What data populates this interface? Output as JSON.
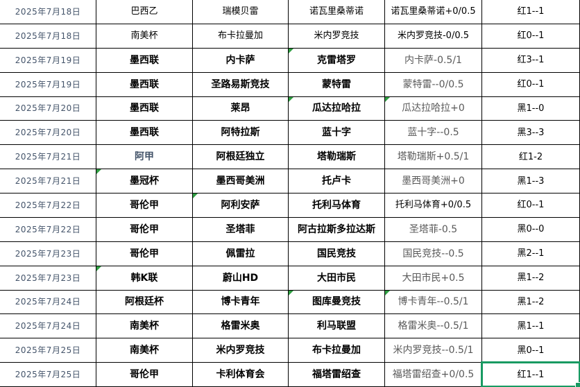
{
  "app": {
    "kind": "spreadsheet-match-record"
  },
  "colors": {
    "background": "#ffffff",
    "grid_line": "#000000",
    "date_text": "#44546A",
    "league_accent_text": "#44546A",
    "handicap_gray_text": "#595959",
    "error_triangle_green": "#2f9e41",
    "selection_border_green": "#189a62"
  },
  "table": {
    "columns": [
      "date",
      "league",
      "home",
      "away",
      "handicap",
      "result"
    ],
    "rows": [
      {
        "date": "2025年7月18日",
        "league": "巴西乙",
        "home": "瑞模贝雷",
        "away": "诺瓦里桑蒂诺",
        "handicap": "诺瓦里桑蒂诺+0/0.5",
        "result": "红1--1",
        "bold": false,
        "handicap_black": true,
        "triangles": [],
        "league_accent": false,
        "selected": ""
      },
      {
        "date": "2025年7月18日",
        "league": "南美杯",
        "home": "布卡拉曼加",
        "away": "米内罗竞技",
        "handicap": "米内罗竞技-0/0.5",
        "result": "红0--1",
        "bold": false,
        "handicap_black": true,
        "triangles": [],
        "league_accent": false,
        "selected": ""
      },
      {
        "date": "2025年7月19日",
        "league": "墨西联",
        "home": "内卡萨",
        "away": "克雷塔罗",
        "handicap": "内卡萨-0.5/1",
        "result": "红3--1",
        "bold": true,
        "handicap_black": false,
        "triangles": [
          "away"
        ],
        "league_accent": false,
        "selected": ""
      },
      {
        "date": "2025年7月19日",
        "league": "墨西联",
        "home": "圣路易斯竞技",
        "away": "蒙特雷",
        "handicap": "蒙特雷--0/0.5",
        "result": "红0--1",
        "bold": true,
        "handicap_black": false,
        "triangles": [],
        "league_accent": false,
        "selected": ""
      },
      {
        "date": "2025年7月20日",
        "league": "墨西联",
        "home": "莱昂",
        "away": "瓜达拉哈拉",
        "handicap": "瓜达拉哈拉+0",
        "result": "黑1--0",
        "bold": true,
        "handicap_black": false,
        "triangles": [
          "away",
          "handicap"
        ],
        "league_accent": false,
        "selected": ""
      },
      {
        "date": "2025年7月20日",
        "league": "墨西联",
        "home": "阿特拉斯",
        "away": "蓝十字",
        "handicap": "蓝十字--0.5",
        "result": "黑3--3",
        "bold": true,
        "handicap_black": false,
        "triangles": [],
        "league_accent": false,
        "selected": ""
      },
      {
        "date": "2025年7月21日",
        "league": "阿甲",
        "home": "阿根廷独立",
        "away": "塔勒瑞斯",
        "handicap": "塔勒瑞斯+0.5/1",
        "result": "红1-2",
        "bold": true,
        "handicap_black": false,
        "triangles": [],
        "league_accent": true,
        "selected": ""
      },
      {
        "date": "2025年7月21日",
        "league": "墨冠杯",
        "home": "墨西哥美洲",
        "away": "托卢卡",
        "handicap": "墨西哥美洲+0",
        "result": "黑1--3",
        "bold": true,
        "handicap_black": false,
        "triangles": [
          "league"
        ],
        "league_accent": false,
        "selected": ""
      },
      {
        "date": "2025年7月22日",
        "league": "哥伦甲",
        "home": "阿利安萨",
        "away": "托利马体育",
        "handicap": "托利马体育+0/0.5",
        "result": "红0--1",
        "bold": true,
        "handicap_black": true,
        "triangles": [
          "home"
        ],
        "league_accent": false,
        "selected": ""
      },
      {
        "date": "2025年7月22日",
        "league": "哥伦甲",
        "home": "圣塔菲",
        "away": "阿古拉斯多拉达斯",
        "handicap": "圣塔菲-0.5",
        "result": "黑0--0",
        "bold": true,
        "handicap_black": false,
        "triangles": [],
        "league_accent": false,
        "selected": ""
      },
      {
        "date": "2025年7月23日",
        "league": "哥伦甲",
        "home": "佩雷拉",
        "away": "国民竞技",
        "handicap": "国民竞技--0.5",
        "result": "黑2--1",
        "bold": true,
        "handicap_black": false,
        "triangles": [],
        "league_accent": false,
        "selected": ""
      },
      {
        "date": "2025年7月23日",
        "league": "韩K联",
        "home": "蔚山HD",
        "away": "大田市民",
        "handicap": "大田市民+0.5",
        "result": "黑1--2",
        "bold": true,
        "handicap_black": false,
        "triangles": [
          "league"
        ],
        "league_accent": false,
        "selected": ""
      },
      {
        "date": "2025年7月24日",
        "league": "阿根廷杯",
        "home": "博卡青年",
        "away": "图库曼竞技",
        "handicap": "博卡青年--0.5/1",
        "result": "黑1--2",
        "bold": true,
        "handicap_black": false,
        "triangles": [
          "away",
          "handicap"
        ],
        "league_accent": false,
        "selected": ""
      },
      {
        "date": "2025年7月24日",
        "league": "南美杯",
        "home": "格雷米奥",
        "away": "利马联盟",
        "handicap": "格雷米奥--0.5/1",
        "result": "黑1--1",
        "bold": true,
        "handicap_black": false,
        "triangles": [],
        "league_accent": false,
        "selected": ""
      },
      {
        "date": "2025年7月25日",
        "league": "南美杯",
        "home": "米内罗竞技",
        "away": "布卡拉曼加",
        "handicap": "米内罗竞技--0.5/1",
        "result": "黑0--1",
        "bold": true,
        "handicap_black": false,
        "triangles": [],
        "league_accent": false,
        "selected": ""
      },
      {
        "date": "2025年7月25日",
        "league": "哥伦甲",
        "home": "卡利体育会",
        "away": "福塔雷绍查",
        "handicap": "福塔雷绍查+0/0.5",
        "result": "红1--1",
        "bold": true,
        "handicap_black": false,
        "triangles": [],
        "league_accent": false,
        "selected": "result"
      }
    ]
  }
}
